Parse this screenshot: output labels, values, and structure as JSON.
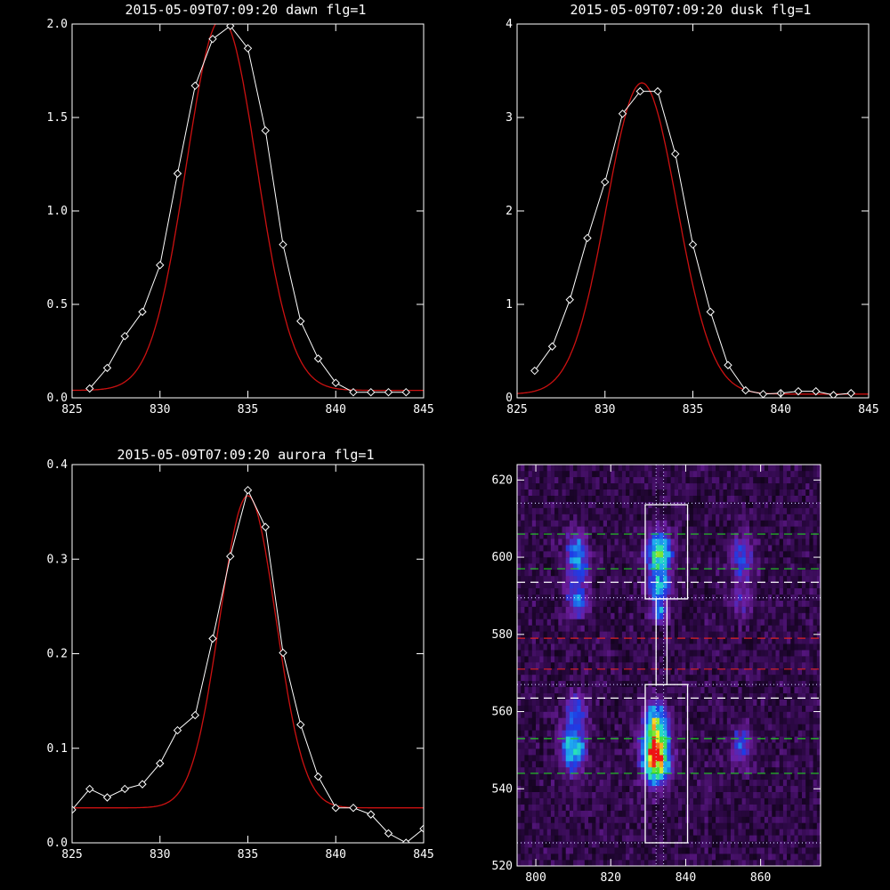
{
  "colors": {
    "background": "#000000",
    "axes": "#ffffff",
    "data_line": "#ffffff",
    "fit_line": "#cc1111",
    "box": "#ffffff",
    "dash_green": "#22cc22",
    "dash_red": "#dd2222",
    "dash_white": "#ffffff",
    "dotted": "#ccccff"
  },
  "chart_data": [
    {
      "type": "line",
      "title": "2015-05-09T07:09:20 dawn flg=1",
      "xlabel": "",
      "ylabel": "",
      "xlim": [
        825,
        845
      ],
      "ylim": [
        0,
        2.0
      ],
      "xticks": [
        825,
        830,
        835,
        840,
        845
      ],
      "xtick_labels": [
        "825",
        "830",
        "835",
        "840",
        "845"
      ],
      "yticks": [
        0,
        0.5,
        1.0,
        1.5,
        2.0
      ],
      "ytick_labels": [
        "0.0",
        "0.5",
        "1.0",
        "1.5",
        "2.0"
      ],
      "series": [
        {
          "style": "data",
          "marker": "diamond",
          "x": [
            826,
            827,
            828,
            829,
            830,
            831,
            832,
            833,
            834,
            835,
            836,
            837,
            838,
            839,
            840,
            841,
            842,
            843,
            844
          ],
          "y": [
            0.05,
            0.16,
            0.33,
            0.46,
            0.71,
            1.2,
            1.67,
            1.92,
            1.99,
            1.87,
            1.43,
            0.82,
            0.41,
            0.21,
            0.08,
            0.03,
            0.03,
            0.03,
            0.03
          ]
        },
        {
          "style": "fit",
          "model": "gaussian",
          "amplitude": 1.99,
          "center": 833.5,
          "sigma": 2.0,
          "baseline": 0.04,
          "x_range": [
            825,
            845
          ]
        }
      ]
    },
    {
      "type": "line",
      "title": "2015-05-09T07:09:20 dusk flg=1",
      "xlabel": "",
      "ylabel": "",
      "xlim": [
        825,
        845
      ],
      "ylim": [
        0,
        4
      ],
      "xticks": [
        825,
        830,
        835,
        840,
        845
      ],
      "xtick_labels": [
        "825",
        "830",
        "835",
        "840",
        "845"
      ],
      "yticks": [
        0,
        1,
        2,
        3,
        4
      ],
      "ytick_labels": [
        "0",
        "1",
        "2",
        "3",
        "4"
      ],
      "series": [
        {
          "style": "data",
          "marker": "diamond",
          "x": [
            826,
            827,
            828,
            829,
            830,
            831,
            832,
            833,
            834,
            835,
            836,
            837,
            838,
            839,
            840,
            841,
            842,
            843,
            844
          ],
          "y": [
            0.29,
            0.55,
            1.05,
            1.71,
            2.31,
            3.04,
            3.28,
            3.28,
            2.61,
            1.64,
            0.92,
            0.35,
            0.08,
            0.04,
            0.05,
            0.07,
            0.07,
            0.03,
            0.05
          ]
        },
        {
          "style": "fit",
          "model": "gaussian",
          "amplitude": 3.33,
          "center": 832.1,
          "sigma": 2.0,
          "baseline": 0.04,
          "x_range": [
            825,
            845
          ]
        }
      ]
    },
    {
      "type": "line",
      "title": "2015-05-09T07:09:20 aurora flg=1",
      "xlabel": "",
      "ylabel": "",
      "xlim": [
        825,
        845
      ],
      "ylim": [
        0,
        0.4
      ],
      "xticks": [
        825,
        830,
        835,
        840,
        845
      ],
      "xtick_labels": [
        "825",
        "830",
        "835",
        "840",
        "845"
      ],
      "yticks": [
        0,
        0.1,
        0.2,
        0.3,
        0.4
      ],
      "ytick_labels": [
        "0.0",
        "0.1",
        "0.2",
        "0.3",
        "0.4"
      ],
      "series": [
        {
          "style": "data",
          "marker": "diamond",
          "x": [
            825,
            826,
            827,
            828,
            829,
            830,
            831,
            832,
            833,
            834,
            835,
            836,
            837,
            838,
            839,
            840,
            841,
            842,
            843,
            844,
            845
          ],
          "y": [
            0.035,
            0.057,
            0.048,
            0.057,
            0.062,
            0.084,
            0.119,
            0.135,
            0.216,
            0.303,
            0.373,
            0.334,
            0.201,
            0.125,
            0.07,
            0.037,
            0.037,
            0.03,
            0.01,
            0.0,
            0.015
          ]
        },
        {
          "style": "fit",
          "model": "gaussian",
          "amplitude": 0.33,
          "center": 835.0,
          "sigma": 1.6,
          "baseline": 0.037,
          "x_range": [
            825,
            845
          ]
        }
      ]
    },
    {
      "type": "heatmap",
      "title": "",
      "xlabel": "",
      "ylabel": "",
      "xlim": [
        795,
        876
      ],
      "ylim": [
        520,
        624
      ],
      "xticks": [
        800,
        820,
        840,
        860
      ],
      "xtick_labels": [
        "800",
        "820",
        "840",
        "860"
      ],
      "yticks": [
        520,
        540,
        560,
        580,
        600,
        620
      ],
      "ytick_labels": [
        "520",
        "540",
        "560",
        "580",
        "600",
        "620"
      ],
      "colormap": "purple-blue-cyan-green-yellow-red",
      "blobs": [
        {
          "x": 811,
          "y": 600,
          "sx": 2.0,
          "sy": 4.5,
          "amp": 0.45
        },
        {
          "x": 811,
          "y": 589,
          "sx": 2.0,
          "sy": 3.0,
          "amp": 0.35
        },
        {
          "x": 810,
          "y": 551,
          "sx": 2.2,
          "sy": 4.5,
          "amp": 0.55
        },
        {
          "x": 811,
          "y": 561,
          "sx": 2.0,
          "sy": 2.5,
          "amp": 0.3
        },
        {
          "x": 833,
          "y": 601,
          "sx": 2.3,
          "sy": 4.0,
          "amp": 0.65
        },
        {
          "x": 833,
          "y": 592,
          "sx": 2.0,
          "sy": 2.5,
          "amp": 0.45
        },
        {
          "x": 833,
          "y": 586,
          "sx": 1.6,
          "sy": 2.0,
          "amp": 0.35
        },
        {
          "x": 832,
          "y": 548,
          "sx": 2.4,
          "sy": 4.5,
          "amp": 1.0
        },
        {
          "x": 832,
          "y": 557,
          "sx": 2.2,
          "sy": 4.0,
          "amp": 0.55
        },
        {
          "x": 855,
          "y": 600,
          "sx": 2.2,
          "sy": 4.0,
          "amp": 0.3
        },
        {
          "x": 855,
          "y": 589,
          "sx": 2.0,
          "sy": 3.0,
          "amp": 0.2
        },
        {
          "x": 855,
          "y": 551,
          "sx": 2.0,
          "sy": 3.5,
          "amp": 0.32
        }
      ],
      "boxes": [
        {
          "x0": 829.2,
          "x1": 840.5,
          "y0": 589.2,
          "y1": 613.6
        },
        {
          "x0": 829.2,
          "x1": 840.5,
          "y0": 526.0,
          "y1": 567.0
        },
        {
          "x0": 832.1,
          "x1": 835.0,
          "y0": 567.0,
          "y1": 589.2
        }
      ],
      "hlines": [
        {
          "y": 614.0,
          "style": "dotted",
          "color": "dotted"
        },
        {
          "y": 606.0,
          "style": "dashed",
          "color": "dash_green"
        },
        {
          "y": 597.0,
          "style": "dashed",
          "color": "dash_green"
        },
        {
          "y": 593.5,
          "style": "dashed",
          "color": "dash_white"
        },
        {
          "y": 589.5,
          "style": "dotted",
          "color": "dotted"
        },
        {
          "y": 579.0,
          "style": "dashed",
          "color": "dash_red"
        },
        {
          "y": 571.0,
          "style": "dashed",
          "color": "dash_red"
        },
        {
          "y": 567.0,
          "style": "dotted",
          "color": "dotted"
        },
        {
          "y": 563.5,
          "style": "dashed",
          "color": "dash_white"
        },
        {
          "y": 553.0,
          "style": "dashed",
          "color": "dash_green"
        },
        {
          "y": 544.0,
          "style": "dashed",
          "color": "dash_green"
        },
        {
          "y": 526.0,
          "style": "dotted",
          "color": "dotted"
        }
      ],
      "vlines": [
        {
          "x": 832.1,
          "style": "dotted",
          "color": "dotted"
        },
        {
          "x": 834.1,
          "style": "dotted",
          "color": "dotted"
        }
      ]
    }
  ]
}
